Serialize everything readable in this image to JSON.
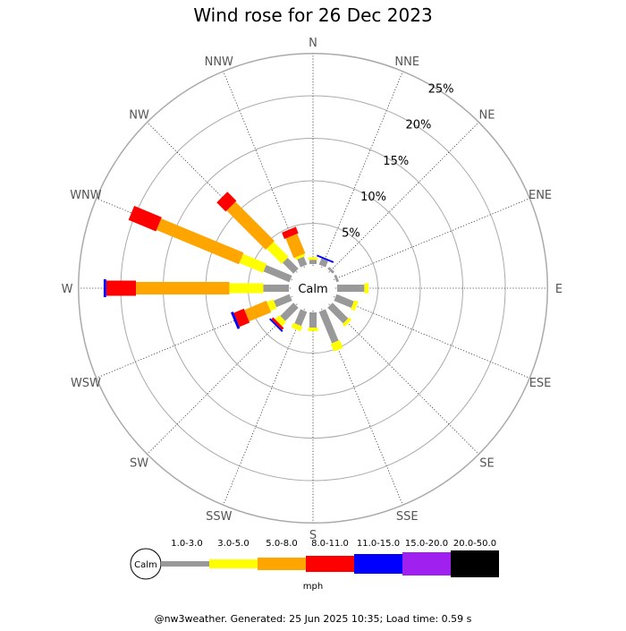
{
  "chart_data": {
    "type": "wind-rose",
    "title": "Wind rose for 26 Dec 2023",
    "directions": [
      "N",
      "NNE",
      "NE",
      "ENE",
      "E",
      "ESE",
      "SE",
      "SSE",
      "S",
      "SSW",
      "SW",
      "WSW",
      "W",
      "WNW",
      "NW",
      "NNW"
    ],
    "rings": [
      5,
      10,
      15,
      20,
      25
    ],
    "ring_labels": [
      "5%",
      "10%",
      "15%",
      "20%",
      "25%"
    ],
    "calm_label": "Calm",
    "unit": "mph",
    "speed_bins": [
      {
        "label": "1.0-3.0",
        "color": "#999999"
      },
      {
        "label": "3.0-5.0",
        "color": "#ffff00"
      },
      {
        "label": "5.0-8.0",
        "color": "#ffa500"
      },
      {
        "label": "8.0-11.0",
        "color": "#ff0000"
      },
      {
        "label": "11.0-15.0",
        "color": "#0000ff"
      },
      {
        "label": "15.0-20.0",
        "color": "#a020f0"
      },
      {
        "label": "20.0-50.0",
        "color": "#000000"
      }
    ],
    "series": [
      {
        "direction": "N",
        "values": [
          0.5,
          0.3,
          0.0,
          0.0,
          0.0,
          0,
          0
        ]
      },
      {
        "direction": "NNE",
        "values": [
          0.8,
          0.0,
          0.0,
          0.0,
          0.2,
          0,
          0
        ]
      },
      {
        "direction": "NE",
        "values": [
          0.3,
          0.0,
          0.0,
          0.0,
          0.0,
          0,
          0
        ]
      },
      {
        "direction": "ENE",
        "values": [
          0.3,
          0.0,
          0.0,
          0.0,
          0.0,
          0,
          0
        ]
      },
      {
        "direction": "E",
        "values": [
          3.2,
          0.5,
          0.0,
          0.0,
          0.0,
          0,
          0
        ]
      },
      {
        "direction": "ESE",
        "values": [
          2.2,
          0.5,
          0.0,
          0.0,
          0.0,
          0,
          0
        ]
      },
      {
        "direction": "SE",
        "values": [
          2.6,
          0.4,
          0.0,
          0.0,
          0.0,
          0,
          0
        ]
      },
      {
        "direction": "SSE",
        "values": [
          4.0,
          1.0,
          0.0,
          0.0,
          0.0,
          0,
          0
        ]
      },
      {
        "direction": "S",
        "values": [
          1.8,
          0.4,
          0.0,
          0.0,
          0.0,
          0,
          0
        ]
      },
      {
        "direction": "SSW",
        "values": [
          1.8,
          0.6,
          0.0,
          0.0,
          0.0,
          0,
          0
        ]
      },
      {
        "direction": "SW",
        "values": [
          2.2,
          0.7,
          0.0,
          0.3,
          0.2,
          0,
          0
        ]
      },
      {
        "direction": "WSW",
        "values": [
          2.0,
          0.8,
          2.8,
          1.3,
          0.3,
          0,
          0
        ]
      },
      {
        "direction": "W",
        "values": [
          3.0,
          4.0,
          11.0,
          3.5,
          0.3,
          0,
          0
        ]
      },
      {
        "direction": "WNW",
        "values": [
          3.3,
          3.0,
          10.5,
          3.5,
          0.0,
          0,
          0
        ]
      },
      {
        "direction": "NW",
        "values": [
          1.8,
          2.5,
          6.5,
          1.5,
          0.0,
          0,
          0
        ]
      },
      {
        "direction": "NNW",
        "values": [
          1.0,
          0.3,
          2.5,
          0.8,
          0.0,
          0,
          0
        ]
      }
    ]
  },
  "footer": "@nw3weather. Generated: 25 Jun 2025 10:35; Load time: 0.59 s"
}
